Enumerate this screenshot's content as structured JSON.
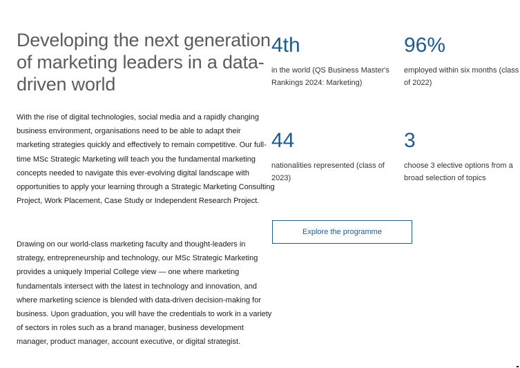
{
  "heading": "Developing the next generation of marketing leaders in a data-driven world",
  "paragraphs": [
    "With the rise of digital technologies, social media and a rapidly changing business environment, organisations need to be able to adapt their marketing strategies quickly and effectively to remain competitive. Our full-time MSc Strategic Marketing will teach you the fundamental marketing concepts needed to navigate this ever-evolving digital landscape with opportunities to apply your learning through a Strategic Marketing Consulting Project, Work Placement, Case Study or Independent Research Project.",
    "Drawing on our world-class marketing faculty and thought-leaders in strategy, entrepreneurship and technology, our MSc Strategic Marketing provides a uniquely Imperial College view — one where marketing fundamentals intersect with the latest in technology and innovation, and where marketing science is blended with data-driven decision-making for business. Upon graduation, you will have the credentials to work in a variety of sectors in roles such as a brand manager, business development manager, product manager, account executive, or digital strategist."
  ],
  "stats": [
    {
      "value": "4th",
      "description": "in the world (QS Business Master's Rankings 2024: Marketing)"
    },
    {
      "value": "96%",
      "description": "employed within six months (class of 2022)"
    },
    {
      "value": "44",
      "description": "nationalities represented (class of 2023)"
    },
    {
      "value": "3",
      "description": "choose 3 elective options from a broad selection of topics"
    }
  ],
  "cta_label": "Explore the programme",
  "colors": {
    "accent": "#1d5b8f",
    "heading": "#5c5c5c",
    "text": "#1a1a1a"
  }
}
